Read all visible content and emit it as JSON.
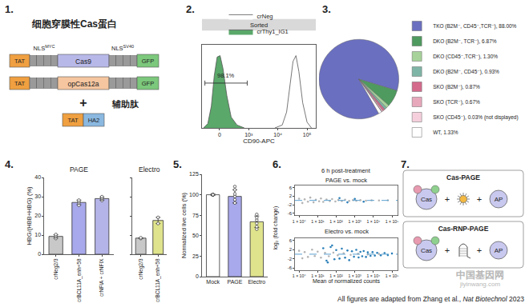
{
  "diagram_1": {
    "panel": "1.",
    "title": "细胞穿膜性Cas蛋白",
    "nls_left": {
      "text": "NLS",
      "sup": "MYC"
    },
    "nls_right": {
      "text": "NLS",
      "sup": "SV40"
    },
    "constructs": [
      [
        "TAT",
        "Cas9",
        "GFP"
      ],
      [
        "TAT",
        "opCas12a",
        "GFP"
      ]
    ],
    "plus": "+",
    "helper_title": "辅助肽",
    "helper": [
      "TAT",
      "HA2"
    ]
  },
  "chart_data": [
    {
      "type": "area",
      "panel": "2.",
      "title": "Sorted",
      "x_label": "CD90-APC",
      "series": [
        {
          "name": "crNeg",
          "color": "#ffffff",
          "x": [
            1.9,
            2.15,
            2.3,
            2.42,
            2.52,
            2.62,
            2.72,
            2.85,
            3.0,
            3.15
          ],
          "values": [
            0,
            4,
            22,
            60,
            92,
            100,
            78,
            35,
            8,
            0
          ]
        },
        {
          "name": "crThy1_IG1",
          "color": "#5aa86a",
          "x": [
            -0.55,
            -0.4,
            -0.28,
            -0.18,
            -0.08,
            0.02,
            0.12,
            0.25,
            0.4,
            0.6,
            0.85
          ],
          "values": [
            0,
            6,
            30,
            72,
            98,
            100,
            82,
            45,
            15,
            4,
            0
          ]
        }
      ],
      "gate": {
        "x": [
          -0.5,
          0.95
        ],
        "y": 62,
        "label": "98.1%"
      },
      "xlim": [
        -0.6,
        3.3
      ],
      "xticks": [
        0,
        {
          "value": 1,
          "label": "10³"
        },
        {
          "value": 2,
          "label": "10⁴"
        },
        {
          "value": 3,
          "label": "10⁵"
        }
      ],
      "ylim": [
        0,
        115
      ],
      "tick_labels": "x",
      "legend": "top"
    },
    {
      "type": "pie",
      "panel": "3.",
      "categories": [
        "TKO (B2M⁻, CD45⁻,TCR⁻), 88.00%",
        "DKO (B2M⁻, TCR⁻), 6.87%",
        "DKO (CD45⁻,TCR⁻), 1.30%",
        "DKO (B2M⁻, CD45⁻), 0.93%",
        "SKO (B2M⁻), 0.87%",
        "SKO (TCR⁻), 0.67%",
        "SKO (CD45⁻), 0.03% (not displayed)",
        "WT, 1.33%"
      ],
      "values": [
        88.0,
        6.87,
        1.3,
        0.93,
        0.87,
        0.67,
        0.03,
        1.33
      ],
      "colors": [
        "#6a6fc0",
        "#4f9a5f",
        "#a7d39a",
        "#7fb5a6",
        "#d46a8c",
        "#e8a8bc",
        "#f5d0dc",
        "#ffffff"
      ],
      "legend": "right"
    },
    {
      "type": "bar",
      "panel": "4.",
      "title": "PAGE",
      "y_label": "HBG/(HBB+HBG) (%)",
      "categories": [
        "crNeg2/3",
        "crBCL11A_enh+58",
        "crNFIA + crNFIX"
      ],
      "values": [
        9.3,
        27,
        29
      ],
      "errors": [
        0.9,
        1.2,
        0.8
      ],
      "points": [
        [
          8.2,
          9.0,
          9.6,
          10.3
        ],
        [
          25.5,
          26.8,
          27.5,
          28.2
        ],
        [
          28.0,
          28.8,
          29.3,
          30.0
        ]
      ],
      "colors": [
        "#c8c8c8",
        "#a8a8ec",
        "#b4b4e8"
      ],
      "ylim": [
        0,
        40
      ],
      "yticks": [
        0,
        10,
        20,
        30,
        40
      ]
    },
    {
      "type": "bar",
      "title": "Electro",
      "categories": [
        "crNeg2/3",
        "crBCL11A_enh+58"
      ],
      "values": [
        8.4,
        17.6
      ],
      "errors": [
        0.2,
        1.6
      ],
      "points": [
        [
          8.2,
          8.6
        ],
        [
          16.0,
          19.2
        ]
      ],
      "colors": [
        "#c8c8c8",
        "#dfe38c"
      ],
      "ylim": [
        0,
        40
      ],
      "yticks": [
        0,
        10,
        20,
        30,
        40
      ],
      "tick_labels": "x"
    },
    {
      "type": "bar",
      "panel": "5.",
      "y_label": "Normalized live cells (%)",
      "categories": [
        "Mock",
        "PAGE",
        "Electro"
      ],
      "values": [
        100,
        98,
        67
      ],
      "errors": [
        1,
        8,
        7
      ],
      "points": [
        [
          100,
          100,
          100,
          100,
          100,
          100
        ],
        [
          90,
          94,
          98,
          101,
          106,
          110
        ],
        [
          58,
          61,
          65,
          69,
          72,
          76
        ]
      ],
      "colors": [
        "#ffffff",
        "#a8a8ec",
        "#dfe38c"
      ],
      "ylim": [
        0,
        125
      ],
      "yticks": [
        0,
        25,
        50,
        75,
        100,
        125
      ]
    },
    {
      "type": "scatter",
      "panel": "6.",
      "title": "6 h post-treatment",
      "x_label": "Mean of normalized counts",
      "y_label": "log₂ (fold change)",
      "log": "x",
      "xlim": [
        0.6,
        200000
      ],
      "xticks": [
        {
          "value": 1,
          "label": "1 × 10⁰"
        },
        {
          "value": 10,
          "label": "1 × 10¹"
        },
        {
          "value": 100,
          "label": "1 × 10²"
        },
        {
          "value": 1000,
          "label": "1 × 10³"
        },
        {
          "value": 10000,
          "label": "1 × 10⁴"
        },
        {
          "value": 100000,
          "label": "1 × 10⁵"
        }
      ],
      "ylim": [
        -7,
        7
      ],
      "yticks": [
        -6,
        -2,
        2,
        6
      ],
      "hline": 0,
      "panels": [
        {
          "title": "PAGE vs. mock",
          "series": [
            {
              "color": "#b4b4b4",
              "x": [
                1,
                1.5,
                2,
                3,
                4,
                6,
                8,
                12,
                15,
                20,
                30,
                45,
                60,
                90,
                130,
                200,
                300,
                500,
                800,
                1200,
                2000,
                4000,
                8000,
                20000,
                60000
              ],
              "values": [
                0.8,
                -1.2,
                0.5,
                -0.6,
                1.3,
                -0.9,
                0.3,
                -0.4,
                0.9,
                -0.7,
                0.4,
                -0.3,
                0.6,
                -0.5,
                0.2,
                -0.3,
                0.3,
                -0.2,
                0.15,
                -0.15,
                0.1,
                -0.1,
                0.08,
                -0.05,
                0.05
              ]
            },
            {
              "color": "#2a7fb8",
              "x": [
                150,
                400,
                1000,
                3000
              ],
              "values": [
                1.1,
                -0.9,
                0.7,
                -0.6
              ]
            }
          ]
        },
        {
          "title": "Electro vs. mock",
          "series": [
            {
              "color": "#b4b4b4",
              "x": [
                1,
                1.5,
                2,
                3,
                5,
                7,
                10,
                15,
                25,
                40,
                70,
                120,
                250,
                600,
                1500,
                5000,
                20000
              ],
              "values": [
                1.5,
                -1.8,
                0.9,
                -1.2,
                2.0,
                -0.8,
                1.1,
                -1.5,
                0.6,
                -0.9,
                0.7,
                -0.5,
                0.4,
                -0.3,
                0.2,
                -0.15,
                0.1
              ]
            },
            {
              "color": "#2a7fb8",
              "x": [
                20,
                30,
                35,
                50,
                60,
                80,
                100,
                150,
                200,
                300,
                400,
                500,
                700,
                900,
                1200,
                1600,
                2000,
                2500,
                3000,
                4000,
                5000,
                7000,
                9000,
                12000,
                16000,
                25000,
                40000,
                60000,
                100000
              ],
              "values": [
                2.6,
                -2.8,
                -3.6,
                3.1,
                3.8,
                -2.2,
                1.8,
                -1.9,
                2.4,
                -1.5,
                1.6,
                -2.6,
                1.3,
                -1.1,
                1.9,
                -1.4,
                1.0,
                -0.9,
                1.4,
                -1.2,
                0.8,
                -0.7,
                0.9,
                -0.6,
                0.6,
                -0.5,
                0.5,
                -0.4,
                0.3
              ]
            }
          ]
        }
      ]
    }
  ],
  "diagram_7": {
    "panel": "7.",
    "boxes": [
      {
        "title": "Cas-PAGE",
        "protein": "Cas",
        "plus": "+",
        "partner": "AP"
      },
      {
        "title": "Cas-RNP-PAGE",
        "protein": "Cas",
        "plus": "+",
        "partner": "AP"
      }
    ]
  },
  "watermark": [
    "中国基因网",
    "jiyinwang.com"
  ],
  "footer": {
    "text": "All figures are adapted from Zhang et al., ",
    "italic": "Nat Biotechnol",
    "after": " 2023"
  }
}
